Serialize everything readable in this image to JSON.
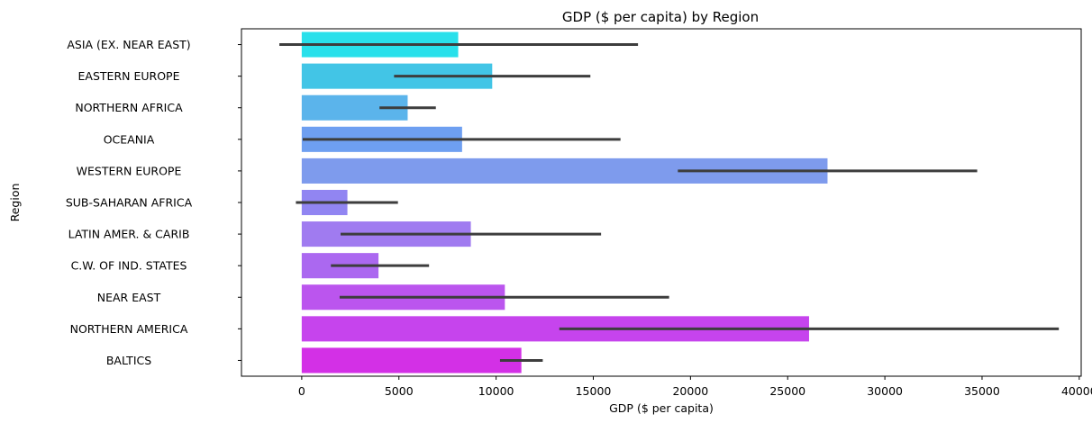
{
  "chart_data": {
    "type": "bar",
    "orientation": "horizontal",
    "title": "GDP ($ per capita) by Region",
    "xlabel": "GDP ($ per capita)",
    "ylabel": "Region",
    "xlim": [
      -3100,
      40100
    ],
    "xticks": [
      0,
      5000,
      10000,
      15000,
      20000,
      25000,
      30000,
      35000,
      40000
    ],
    "xtick_labels": [
      "0",
      "5000",
      "10000",
      "15000",
      "20000",
      "25000",
      "30000",
      "35000",
      "40000"
    ],
    "grid": false,
    "legend": "none",
    "categories": [
      "ASIA (EX. NEAR EAST)",
      "EASTERN EUROPE",
      "NORTHERN AFRICA",
      "OCEANIA",
      "WESTERN EUROPE",
      "SUB-SAHARAN AFRICA",
      "LATIN AMER. & CARIB",
      "C.W. OF IND. STATES",
      "NEAR EAST",
      "NORTHERN AMERICA",
      "BALTICS"
    ],
    "values": [
      8050,
      9800,
      5450,
      8250,
      27050,
      2350,
      8700,
      3950,
      10450,
      26100,
      11300
    ],
    "error_low": [
      -1150,
      4750,
      4000,
      50,
      19350,
      -300,
      2000,
      1500,
      1950,
      13250,
      10200
    ],
    "error_high": [
      17300,
      14850,
      6900,
      16400,
      34750,
      4950,
      15400,
      6550,
      18900,
      38950,
      12400
    ],
    "colors": [
      "#28e0eb",
      "#42c5e6",
      "#5bb4eb",
      "#6e9ff1",
      "#7e9bed",
      "#9185f2",
      "#a07bf0",
      "#ab68f0",
      "#bb55ee",
      "#c644ed",
      "#d330e6"
    ]
  }
}
